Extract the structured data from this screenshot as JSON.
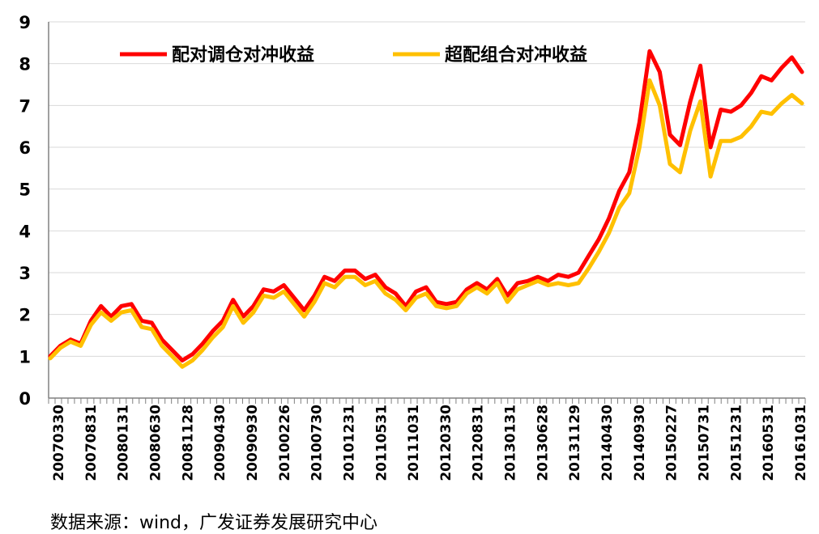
{
  "chart_data": {
    "type": "line",
    "title": "",
    "xlabel": "",
    "ylabel": "",
    "ylim": [
      0,
      9
    ],
    "yticks": [
      0,
      1,
      2,
      3,
      4,
      5,
      6,
      7,
      8,
      9
    ],
    "grid": "horizontal",
    "legend_position": "top",
    "x_tick_labels": [
      "20070330",
      "20070831",
      "20080131",
      "20080630",
      "20081128",
      "20090430",
      "20090930",
      "20100226",
      "20100730",
      "20101231",
      "20110531",
      "20111031",
      "20120330",
      "20120831",
      "20130131",
      "20130628",
      "20131129",
      "20140430",
      "20140930",
      "20150227",
      "20150731",
      "20151231",
      "20160531",
      "20161031"
    ],
    "series": [
      {
        "name": "配对调仓对冲收益",
        "color": "#ff0000",
        "values": [
          1.0,
          1.25,
          1.4,
          1.3,
          1.85,
          2.2,
          1.95,
          2.2,
          2.25,
          1.85,
          1.8,
          1.4,
          1.15,
          0.9,
          1.05,
          1.3,
          1.6,
          1.85,
          2.35,
          1.95,
          2.2,
          2.6,
          2.55,
          2.7,
          2.4,
          2.1,
          2.45,
          2.9,
          2.8,
          3.05,
          3.05,
          2.85,
          2.95,
          2.65,
          2.5,
          2.2,
          2.55,
          2.65,
          2.3,
          2.25,
          2.3,
          2.6,
          2.75,
          2.6,
          2.85,
          2.45,
          2.75,
          2.8,
          2.9,
          2.8,
          2.95,
          2.9,
          3.0,
          3.4,
          3.8,
          4.3,
          4.95,
          5.4,
          6.6,
          8.3,
          7.8,
          6.3,
          6.05,
          7.1,
          7.95,
          6.0,
          6.9,
          6.85,
          7.0,
          7.3,
          7.7,
          7.6,
          7.9,
          8.15,
          7.8
        ]
      },
      {
        "name": "超配组合对冲收益",
        "color": "#ffc000",
        "values": [
          0.95,
          1.2,
          1.35,
          1.25,
          1.75,
          2.05,
          1.85,
          2.05,
          2.1,
          1.7,
          1.65,
          1.25,
          1.0,
          0.75,
          0.9,
          1.15,
          1.45,
          1.7,
          2.2,
          1.8,
          2.05,
          2.45,
          2.4,
          2.55,
          2.25,
          1.95,
          2.3,
          2.75,
          2.65,
          2.9,
          2.9,
          2.7,
          2.8,
          2.5,
          2.35,
          2.1,
          2.4,
          2.5,
          2.2,
          2.15,
          2.2,
          2.5,
          2.65,
          2.5,
          2.75,
          2.3,
          2.6,
          2.7,
          2.8,
          2.7,
          2.75,
          2.7,
          2.75,
          3.1,
          3.5,
          3.95,
          4.55,
          4.9,
          6.0,
          7.6,
          7.0,
          5.6,
          5.4,
          6.4,
          7.1,
          5.3,
          6.15,
          6.15,
          6.25,
          6.5,
          6.85,
          6.8,
          7.05,
          7.25,
          7.05
        ]
      }
    ]
  },
  "source_note": "数据来源：wind，广发证券发展研究中心"
}
